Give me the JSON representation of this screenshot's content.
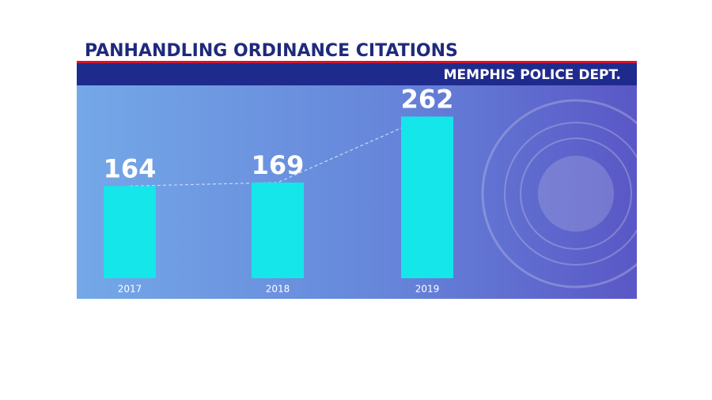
{
  "chart_data": {
    "type": "bar",
    "title": "PANHANDLING ORDINANCE CITATIONS",
    "subtitle": "MEMPHIS POLICE DEPT.",
    "categories": [
      "2017",
      "2018",
      "2019"
    ],
    "values": [
      164,
      169,
      262
    ],
    "color": "#14e6ea",
    "ylim": [
      34,
      306
    ]
  }
}
